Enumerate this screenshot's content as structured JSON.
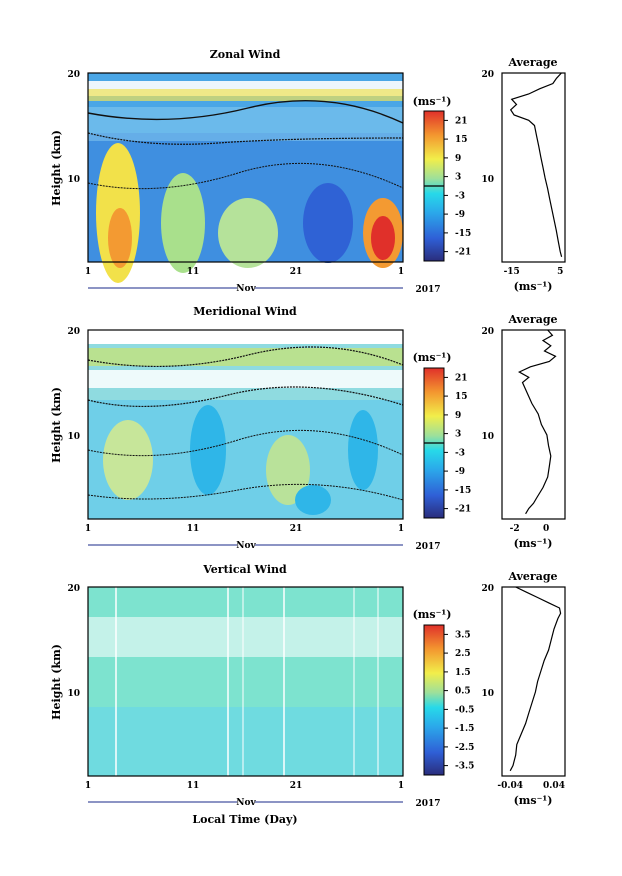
{
  "chart_data": [
    {
      "type": "heatmap",
      "title": "Zonal Wind",
      "ylabel": "Height (km)",
      "ylim": [
        2,
        20
      ],
      "yticks": [
        "20",
        "10"
      ],
      "xlim": [
        1,
        31
      ],
      "xticks": [
        "1",
        "11",
        "21",
        "1"
      ],
      "xsublabel": "Nov",
      "year": "2017",
      "colorbar": {
        "unit": "(ms⁻¹)",
        "ticks": [
          "21",
          "15",
          "9",
          "3",
          "-3",
          "-9",
          "-15",
          "-21"
        ],
        "range": [
          -24,
          24
        ]
      },
      "average": {
        "title": "Average",
        "xlabel": "(ms⁻¹)",
        "xticks": [
          "-15",
          "5"
        ],
        "xlim": [
          -19,
          7
        ],
        "yticks": [
          "20",
          "10"
        ],
        "profile": [
          [
            2.5,
            5.6
          ],
          [
            3,
            5
          ],
          [
            4,
            4.2
          ],
          [
            5,
            3.4
          ],
          [
            6,
            2.5
          ],
          [
            7,
            1.6
          ],
          [
            8,
            0.7
          ],
          [
            9,
            -0.2
          ],
          [
            10,
            -1.2
          ],
          [
            11,
            -2.1
          ],
          [
            12,
            -3
          ],
          [
            13,
            -3.8
          ],
          [
            14,
            -4.7
          ],
          [
            15,
            -5.6
          ],
          [
            15.5,
            -8
          ],
          [
            16,
            -14
          ],
          [
            16.5,
            -15.4
          ],
          [
            17,
            -13
          ],
          [
            17.5,
            -15
          ],
          [
            18,
            -8
          ],
          [
            18.5,
            -3.5
          ],
          [
            19,
            2
          ],
          [
            19.5,
            3.5
          ],
          [
            20,
            5.5
          ]
        ]
      }
    },
    {
      "type": "heatmap",
      "title": "Meridional Wind",
      "ylabel": "Height (km)",
      "ylim": [
        2,
        20
      ],
      "yticks": [
        "20",
        "10"
      ],
      "xlim": [
        1,
        31
      ],
      "xticks": [
        "1",
        "11",
        "21",
        "1"
      ],
      "xsublabel": "Nov",
      "year": "2017",
      "colorbar": {
        "unit": "(ms⁻¹)",
        "ticks": [
          "21",
          "15",
          "9",
          "3",
          "-3",
          "-9",
          "-15",
          "-21"
        ],
        "range": [
          -24,
          24
        ]
      },
      "average": {
        "title": "Average",
        "xlabel": "(ms⁻¹)",
        "xticks": [
          "-2",
          "0"
        ],
        "xlim": [
          -2.8,
          1.2
        ],
        "yticks": [
          "20",
          "10"
        ],
        "profile": [
          [
            2.5,
            -1.3
          ],
          [
            3,
            -1.1
          ],
          [
            3.5,
            -0.8
          ],
          [
            4,
            -0.6
          ],
          [
            5,
            -0.2
          ],
          [
            6,
            0.1
          ],
          [
            7,
            0.2
          ],
          [
            8,
            0.3
          ],
          [
            9,
            0.15
          ],
          [
            10,
            0.05
          ],
          [
            11,
            -0.3
          ],
          [
            12,
            -0.5
          ],
          [
            13,
            -0.9
          ],
          [
            14,
            -1.2
          ],
          [
            15,
            -1.5
          ],
          [
            15.5,
            -1.1
          ],
          [
            16,
            -1.7
          ],
          [
            16.5,
            -1.0
          ],
          [
            17,
            0.2
          ],
          [
            17.5,
            0.6
          ],
          [
            18,
            -0.1
          ],
          [
            18.5,
            0.3
          ],
          [
            19,
            -0.2
          ],
          [
            19.5,
            0.4
          ],
          [
            20,
            0.1
          ]
        ]
      }
    },
    {
      "type": "heatmap",
      "title": "Vertical Wind",
      "ylabel": "Height (km)",
      "ylim": [
        2,
        20
      ],
      "yticks": [
        "20",
        "10"
      ],
      "xlim": [
        1,
        31
      ],
      "xticks": [
        "1",
        "11",
        "21",
        "1"
      ],
      "xsublabel": "Nov",
      "year": "2017",
      "xlabel": "Local Time (Day)",
      "colorbar": {
        "unit": "(ms⁻¹)",
        "ticks": [
          "3.5",
          "2.5",
          "1.5",
          "0.5",
          "-0.5",
          "-1.5",
          "-2.5",
          "-3.5"
        ],
        "range": [
          -4,
          4
        ]
      },
      "average": {
        "title": "Average",
        "xlabel": "(ms⁻¹)",
        "xticks": [
          "-0.04",
          "0.04"
        ],
        "xlim": [
          -0.055,
          0.06
        ],
        "yticks": [
          "20",
          "10"
        ],
        "profile": [
          [
            2.5,
            -0.04
          ],
          [
            3,
            -0.035
          ],
          [
            4,
            -0.03
          ],
          [
            5,
            -0.028
          ],
          [
            6,
            -0.02
          ],
          [
            7,
            -0.012
          ],
          [
            8,
            -0.006
          ],
          [
            9,
            0.0
          ],
          [
            10,
            0.006
          ],
          [
            11,
            0.01
          ],
          [
            12,
            0.016
          ],
          [
            13,
            0.022
          ],
          [
            14,
            0.03
          ],
          [
            15,
            0.035
          ],
          [
            16,
            0.04
          ],
          [
            17,
            0.047
          ],
          [
            17.5,
            0.052
          ],
          [
            18,
            0.05
          ],
          [
            18.5,
            0.03
          ],
          [
            19,
            0.01
          ],
          [
            19.5,
            -0.01
          ],
          [
            20,
            -0.03
          ]
        ]
      }
    }
  ]
}
